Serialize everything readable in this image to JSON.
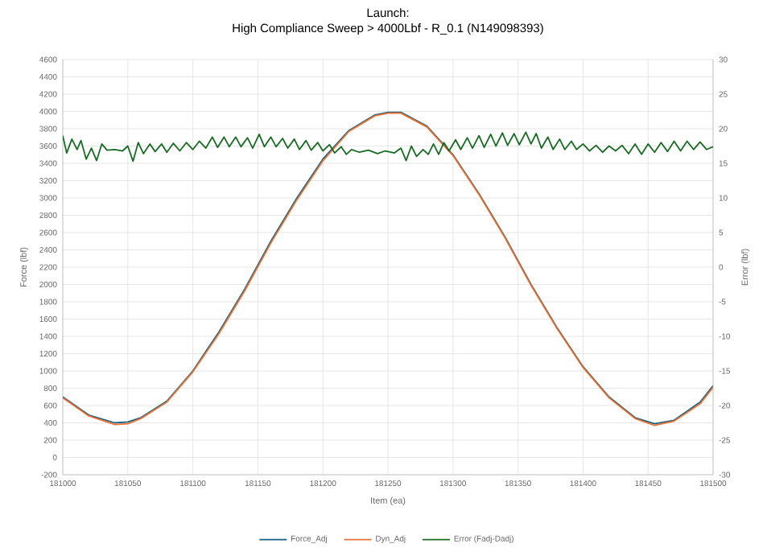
{
  "chart_data": {
    "type": "line",
    "title": "Launch:",
    "subtitle": "High Compliance Sweep > 4000Lbf - R_0.1 (N149098393)",
    "xlabel": "Item (ea)",
    "ylabel": "Force (lbf)",
    "y2label": "Error (lbf)",
    "xlim": [
      181000,
      181500
    ],
    "xticks": [
      181000,
      181050,
      181100,
      181150,
      181200,
      181250,
      181300,
      181350,
      181400,
      181450,
      181500
    ],
    "ylim": [
      -200,
      4600
    ],
    "yticks": [
      -200,
      0,
      200,
      400,
      600,
      800,
      1000,
      1200,
      1400,
      1600,
      1800,
      2000,
      2200,
      2400,
      2600,
      2800,
      3000,
      3200,
      3400,
      3600,
      3800,
      4000,
      4200,
      4400,
      4600
    ],
    "y2lim": [
      -30,
      30
    ],
    "y2ticks": [
      -30,
      -25,
      -20,
      -15,
      -10,
      -5,
      0,
      5,
      10,
      15,
      20,
      25,
      30
    ],
    "grid": true,
    "legend": "bottom",
    "marker": "none",
    "line_style": "solid",
    "series": [
      {
        "name": "Force_Adj",
        "color": "#156082",
        "x": [
          181000,
          181020,
          181040,
          181050,
          181060,
          181080,
          181100,
          181120,
          181140,
          181160,
          181180,
          181200,
          181220,
          181240,
          181250,
          181260,
          181280,
          181300,
          181320,
          181340,
          181360,
          181380,
          181400,
          181420,
          181440,
          181455,
          181470,
          181490,
          181500
        ],
        "values": [
          700,
          490,
          400,
          410,
          460,
          650,
          1000,
          1450,
          1950,
          2500,
          3000,
          3450,
          3780,
          3960,
          3990,
          3990,
          3830,
          3500,
          3050,
          2550,
          2000,
          1500,
          1050,
          700,
          460,
          390,
          430,
          640,
          830
        ]
      },
      {
        "name": "Dyn_Adj",
        "color": "#e97132",
        "x": [
          181000,
          181020,
          181040,
          181050,
          181060,
          181080,
          181100,
          181120,
          181140,
          181160,
          181180,
          181200,
          181220,
          181240,
          181250,
          181260,
          181280,
          181300,
          181320,
          181340,
          181360,
          181380,
          181400,
          181420,
          181440,
          181455,
          181470,
          181490,
          181500
        ],
        "values": [
          690,
          480,
          380,
          390,
          450,
          640,
          990,
          1430,
          1930,
          2480,
          2980,
          3430,
          3770,
          3950,
          3980,
          3980,
          3820,
          3490,
          3040,
          2540,
          1990,
          1490,
          1040,
          690,
          450,
          370,
          420,
          620,
          810
        ]
      },
      {
        "name": "Error (Fadj-Dadj)",
        "color": "#196b24",
        "axis": "y2",
        "x": [
          181000,
          181003,
          181007,
          181011,
          181014,
          181018,
          181022,
          181026,
          181030,
          181034,
          181040,
          181046,
          181050,
          181054,
          181058,
          181062,
          181067,
          181071,
          181076,
          181080,
          181085,
          181090,
          181095,
          181100,
          181105,
          181110,
          181115,
          181119,
          181124,
          181128,
          181133,
          181137,
          181142,
          181146,
          181151,
          181155,
          181160,
          181164,
          181169,
          181173,
          181178,
          181182,
          181187,
          181191,
          181196,
          181200,
          181205,
          181209,
          181214,
          181218,
          181222,
          181228,
          181235,
          181242,
          181248,
          181255,
          181260,
          181264,
          181268,
          181272,
          181277,
          181281,
          181285,
          181289,
          181293,
          181297,
          181302,
          181306,
          181311,
          181315,
          181320,
          181324,
          181329,
          181333,
          181338,
          181342,
          181347,
          181351,
          181356,
          181360,
          181364,
          181368,
          181373,
          181377,
          181382,
          181386,
          181391,
          181395,
          181400,
          181405,
          181410,
          181415,
          181420,
          181425,
          181430,
          181435,
          181440,
          181445,
          181450,
          181455,
          181460,
          181465,
          181470,
          181475,
          181480,
          181485,
          181490,
          181495,
          181500
        ],
        "values": [
          19,
          16.5,
          18.5,
          17,
          18.3,
          15.6,
          17.2,
          15.4,
          17.8,
          16.9,
          17,
          16.8,
          17.5,
          15.3,
          18,
          16.4,
          17.8,
          16.7,
          17.8,
          16.6,
          17.9,
          16.8,
          18,
          17,
          18.2,
          17.2,
          18.8,
          17.3,
          18.8,
          17.4,
          18.8,
          17.4,
          18.7,
          17.2,
          19.2,
          17.4,
          18.8,
          17.4,
          18.6,
          17.2,
          18.5,
          17,
          18.3,
          16.9,
          18,
          16.8,
          17.7,
          16.5,
          17.4,
          16.3,
          17,
          16.6,
          16.9,
          16.4,
          16.8,
          16.5,
          17.2,
          15.4,
          17.5,
          16,
          17,
          16.3,
          17.8,
          16.3,
          18,
          16.8,
          18.4,
          17,
          18.7,
          17.2,
          19,
          17.3,
          19.2,
          17.5,
          19.4,
          17.6,
          19.3,
          17.7,
          19.5,
          17.8,
          19.3,
          17.2,
          18.8,
          17,
          18.5,
          17,
          18.2,
          17,
          17.8,
          16.8,
          17.6,
          16.6,
          17.5,
          16.8,
          17.6,
          16.4,
          17.8,
          16.3,
          17.8,
          16.6,
          18,
          16.7,
          18.2,
          16.8,
          18.2,
          17,
          18.1,
          17,
          17.4
        ]
      }
    ]
  }
}
